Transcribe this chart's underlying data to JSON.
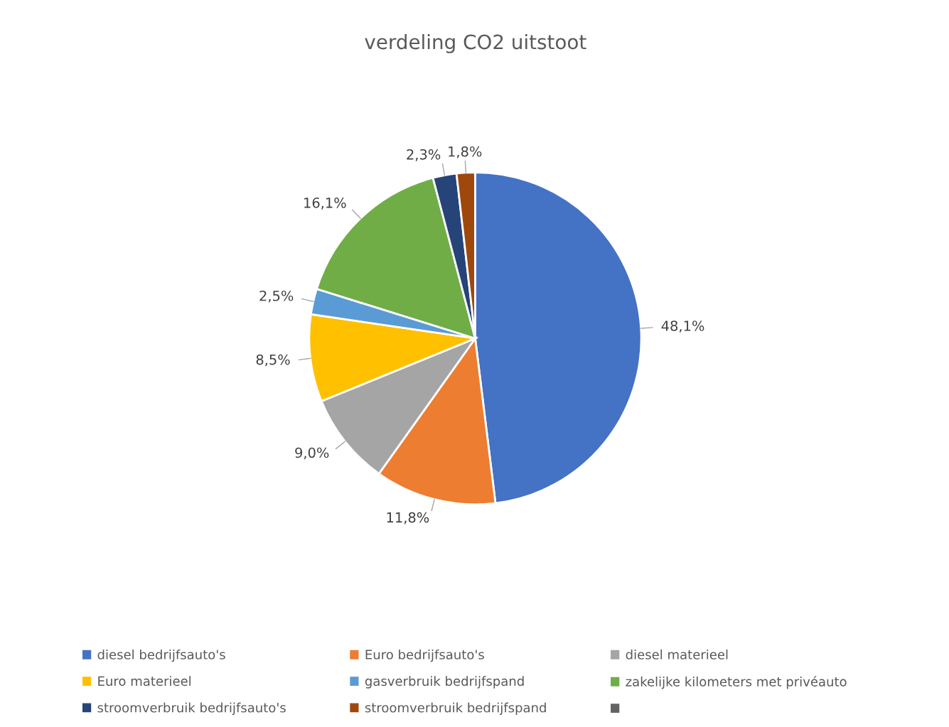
{
  "chart_data": {
    "type": "pie",
    "title": "verdeling CO2 uitstoot",
    "categories": [
      "diesel bedrijfsauto's",
      "Euro bedrijfsauto's",
      "diesel materieel",
      "Euro materieel",
      "gasverbruik bedrijfspand",
      "zakelijke kilometers met privéauto",
      "stroomverbruik bedrijfsauto's",
      "stroomverbruik bedrijfspand",
      null
    ],
    "values": [
      48.1,
      11.8,
      9.0,
      8.5,
      2.5,
      16.1,
      2.3,
      1.8,
      0
    ],
    "colors": [
      "#4472c4",
      "#ed7d31",
      "#a5a5a5",
      "#ffc000",
      "#5b9bd5",
      "#70ad47",
      "#264478",
      "#9e480e",
      "#636363"
    ],
    "value_labels": [
      "48,1%",
      "11,8%",
      "9,0%",
      "8,5%",
      "2,5%",
      "16,1%",
      "2,3%",
      "1,8%",
      null
    ],
    "legend": "bottom"
  }
}
